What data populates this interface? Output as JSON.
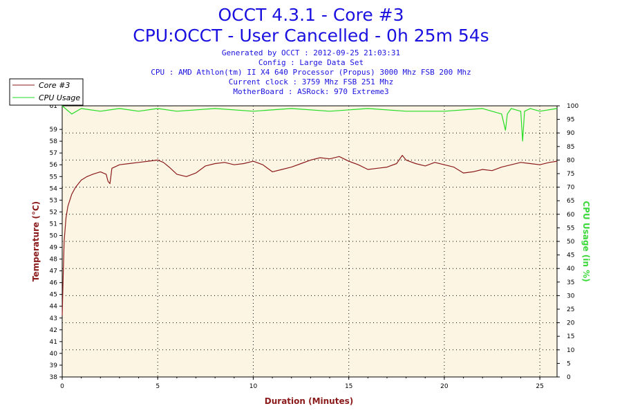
{
  "header": {
    "title_line1": "OCCT 4.3.1 - Core #3",
    "title_line2": "CPU:OCCT - User Cancelled - 0h 25m 54s",
    "info_lines": [
      "Generated by OCCT : 2012-09-25 21:03:31",
      "Config : Large Data Set",
      "CPU : AMD Athlon(tm) II X4 640 Processor (Propus) 3000 Mhz FSB 200 Mhz",
      "Current clock : 3759 Mhz FSB 251 Mhz",
      "MotherBoard : ASRock: 970 Extreme3"
    ]
  },
  "colors": {
    "plot_background": "#fdf5e4",
    "temperature_line": "#8b1a1a",
    "cpu_usage_line": "#22dd22",
    "title": "#1a10e0"
  },
  "legend": {
    "placement": "top-left",
    "items": [
      "Core #3",
      "CPU Usage"
    ]
  },
  "chart_data": {
    "type": "line",
    "xlabel": "Duration (Minutes)",
    "ylabel_left": "Temperature (°C)",
    "ylabel_right": "CPU Usage (in %)",
    "xlim": [
      0,
      25.9
    ],
    "ylim_left": [
      38,
      61
    ],
    "ylim_right": [
      0,
      100
    ],
    "grid": true,
    "x_ticks": [
      0,
      5,
      10,
      15,
      20,
      25
    ],
    "y_left_ticks": [
      38,
      39,
      40,
      41,
      42,
      43,
      44,
      45,
      46,
      47,
      48,
      49,
      50,
      51,
      52,
      53,
      54,
      55,
      56,
      57,
      58,
      59
    ],
    "y_left_top_label": "61",
    "y_right_ticks": [
      0,
      5,
      10,
      15,
      20,
      25,
      30,
      35,
      40,
      45,
      50,
      55,
      60,
      65,
      70,
      75,
      80,
      85,
      90,
      95,
      100
    ],
    "series": [
      {
        "name": "Core #3",
        "axis": "left",
        "x": [
          0,
          0.05,
          0.1,
          0.2,
          0.3,
          0.5,
          0.7,
          1.0,
          1.3,
          1.6,
          2.0,
          2.3,
          2.4,
          2.5,
          2.6,
          3.0,
          3.5,
          4.0,
          4.5,
          5.0,
          5.3,
          5.6,
          6.0,
          6.5,
          7.0,
          7.5,
          8.0,
          8.5,
          9.0,
          9.5,
          10.0,
          10.5,
          11.0,
          11.5,
          12.0,
          12.5,
          13.0,
          13.5,
          14.0,
          14.5,
          15.0,
          15.5,
          16.0,
          16.5,
          17.0,
          17.5,
          17.8,
          18.0,
          18.5,
          19.0,
          19.5,
          20.0,
          20.5,
          21.0,
          21.5,
          22.0,
          22.5,
          23.0,
          23.5,
          24.0,
          24.5,
          25.0,
          25.5,
          25.9
        ],
        "values": [
          43.2,
          46.5,
          49.5,
          51.5,
          52.5,
          53.5,
          54.1,
          54.7,
          55.0,
          55.2,
          55.4,
          55.2,
          54.6,
          54.4,
          55.7,
          56.0,
          56.1,
          56.2,
          56.3,
          56.4,
          56.2,
          55.8,
          55.2,
          55.0,
          55.3,
          55.9,
          56.1,
          56.2,
          56.0,
          56.1,
          56.3,
          56.0,
          55.4,
          55.6,
          55.8,
          56.1,
          56.4,
          56.6,
          56.5,
          56.7,
          56.3,
          56.0,
          55.6,
          55.7,
          55.8,
          56.1,
          56.8,
          56.4,
          56.1,
          55.9,
          56.2,
          56.0,
          55.8,
          55.3,
          55.4,
          55.6,
          55.5,
          55.8,
          56.0,
          56.2,
          56.1,
          56.0,
          56.2,
          56.3
        ]
      },
      {
        "name": "CPU Usage",
        "axis": "right",
        "x": [
          0,
          0.5,
          1.0,
          2.0,
          3.0,
          4.0,
          5.0,
          6.0,
          8.0,
          10.0,
          12.0,
          14.0,
          16.0,
          18.0,
          20.0,
          22.0,
          23.0,
          23.2,
          23.3,
          23.5,
          24.0,
          24.1,
          24.2,
          24.5,
          25.0,
          25.9
        ],
        "values": [
          100,
          97,
          99,
          98,
          99,
          98,
          99,
          98,
          99,
          98,
          99,
          98,
          99,
          98,
          98,
          99,
          97,
          91,
          97,
          99,
          98,
          87,
          98,
          99,
          98,
          99
        ]
      }
    ]
  }
}
